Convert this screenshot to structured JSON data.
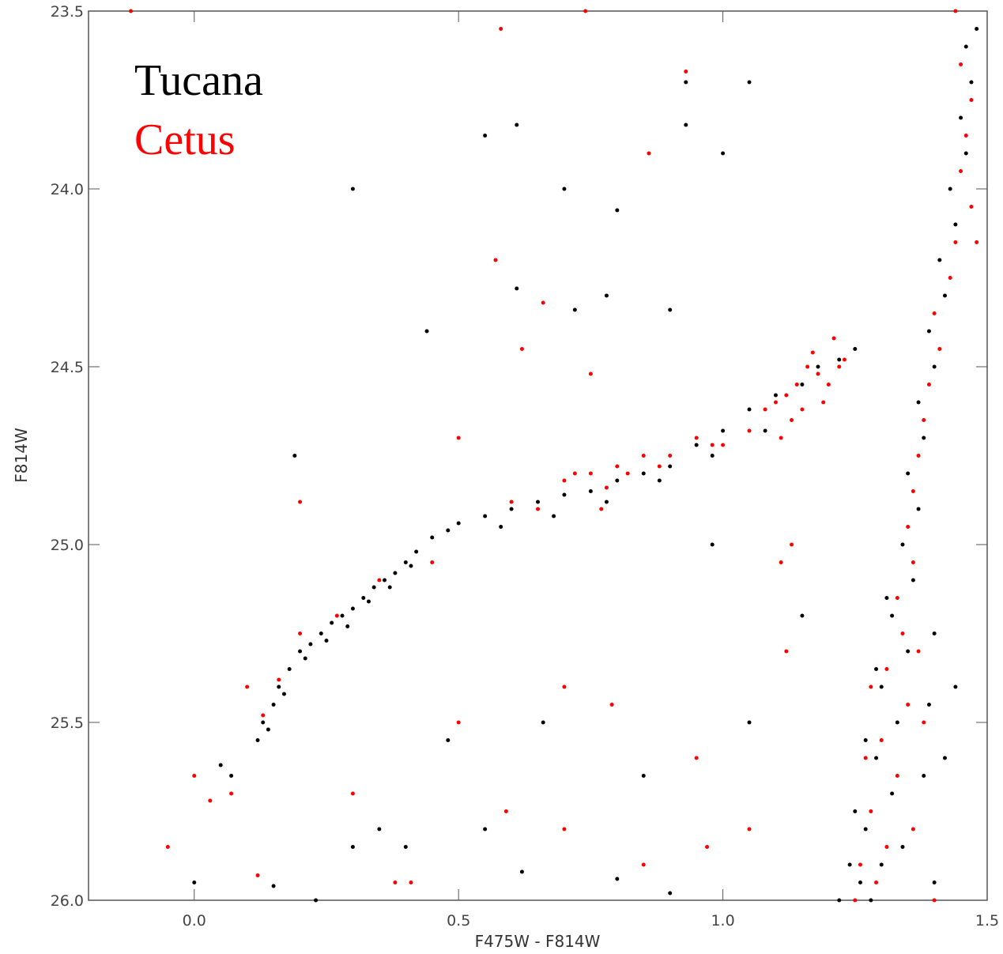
{
  "chart_data": {
    "type": "scatter",
    "x_label": "F475W - F814W",
    "y_label": "F814W",
    "xlim": [
      -0.2,
      1.5
    ],
    "ylim": [
      26.0,
      23.5
    ],
    "xticks": [
      {
        "value": 0,
        "label": "0.0"
      },
      0.5,
      {
        "value": 1,
        "label": "1.0"
      },
      1.5
    ],
    "yticks": [
      23.5,
      {
        "value": 24,
        "label": "24.0"
      },
      24.5,
      {
        "value": 25,
        "label": "25.0"
      },
      25.5,
      {
        "value": 26,
        "label": "26.0"
      }
    ],
    "series": [
      {
        "name": "Tucana",
        "color": "#000000",
        "x": [
          0.12,
          0.13,
          0.15,
          0.16,
          0.18,
          0.2,
          0.22,
          0.24,
          0.26,
          0.28,
          0.3,
          0.32,
          0.34,
          0.36,
          0.38,
          0.4,
          0.42,
          0.45,
          0.48,
          0.5,
          0.55,
          0.6,
          0.65,
          0.7,
          0.75,
          0.8,
          0.85,
          0.9,
          0.95,
          1.0,
          1.05,
          1.1,
          1.15,
          1.18,
          1.22,
          1.25,
          0.14,
          0.17,
          0.21,
          0.25,
          0.29,
          0.33,
          0.37,
          0.41,
          0.07,
          0.05,
          0.58,
          0.68,
          0.78,
          0.88,
          0.98,
          1.08,
          1.28,
          1.3,
          1.27,
          1.32,
          1.29,
          1.33,
          1.3,
          1.35,
          1.32,
          1.36,
          1.34,
          1.37,
          1.35,
          1.38,
          1.37,
          1.4,
          1.39,
          1.42,
          1.41,
          1.44,
          1.43,
          1.46,
          1.45,
          1.47,
          1.46,
          1.48,
          1.26,
          1.34,
          1.25,
          1.38,
          1.27,
          1.39,
          1.29,
          1.4,
          1.31,
          1.22,
          1.24,
          1.4,
          1.42,
          1.44,
          0.3,
          0.55,
          0.61,
          0.7,
          0.8,
          0.44,
          0.61,
          0.72,
          0.78,
          0.9,
          0.93,
          0.93,
          1.0,
          1.05,
          0.19,
          0.0,
          0.15,
          0.4,
          0.62,
          0.55,
          0.8,
          0.9,
          0.35,
          0.48,
          0.66,
          0.85,
          1.05,
          0.98,
          1.15,
          0.3,
          0.23
        ],
        "y": [
          25.55,
          25.5,
          25.45,
          25.4,
          25.35,
          25.3,
          25.28,
          25.25,
          25.22,
          25.2,
          25.18,
          25.15,
          25.12,
          25.1,
          25.08,
          25.05,
          25.02,
          24.98,
          24.96,
          24.94,
          24.92,
          24.9,
          24.88,
          24.86,
          24.85,
          24.82,
          24.8,
          24.78,
          24.72,
          24.68,
          24.62,
          24.58,
          24.55,
          24.5,
          24.48,
          24.45,
          25.52,
          25.42,
          25.32,
          25.27,
          25.23,
          25.16,
          25.12,
          25.06,
          25.65,
          25.62,
          24.95,
          24.92,
          24.88,
          24.82,
          24.75,
          24.68,
          26.0,
          25.9,
          25.8,
          25.7,
          25.6,
          25.5,
          25.4,
          25.3,
          25.2,
          25.1,
          25.0,
          24.9,
          24.8,
          24.7,
          24.6,
          24.5,
          24.4,
          24.3,
          24.2,
          24.1,
          24.0,
          23.9,
          23.8,
          23.7,
          23.6,
          23.55,
          25.95,
          25.85,
          25.75,
          25.65,
          25.55,
          25.45,
          25.35,
          25.25,
          25.15,
          26.0,
          25.9,
          25.95,
          25.6,
          25.4,
          24.0,
          23.85,
          23.82,
          24.0,
          24.06,
          24.4,
          24.28,
          24.34,
          24.3,
          24.34,
          23.82,
          23.7,
          23.9,
          23.7,
          24.75,
          25.95,
          25.96,
          25.85,
          25.92,
          25.8,
          25.94,
          25.98,
          25.8,
          25.55,
          25.5,
          25.65,
          25.5,
          25.0,
          25.2,
          25.85,
          26.0
        ]
      },
      {
        "name": "Cetus",
        "color": "#ff0000",
        "x": [
          0.1,
          0.13,
          0.16,
          0.2,
          0.27,
          0.35,
          0.45,
          0.6,
          0.65,
          0.7,
          0.72,
          0.75,
          0.78,
          0.8,
          0.82,
          0.85,
          0.9,
          0.95,
          1.0,
          1.05,
          1.08,
          1.1,
          1.12,
          1.14,
          1.16,
          1.18,
          1.2,
          1.22,
          1.17,
          1.19,
          1.21,
          1.15,
          1.13,
          1.23,
          1.11,
          0.77,
          0.88,
          0.98,
          -0.05,
          0.0,
          0.03,
          0.07,
          1.29,
          1.31,
          1.28,
          1.33,
          1.3,
          1.35,
          1.31,
          1.34,
          1.33,
          1.36,
          1.35,
          1.36,
          1.37,
          1.38,
          1.39,
          1.41,
          1.4,
          1.43,
          1.44,
          1.48,
          1.47,
          1.45,
          1.46,
          1.47,
          1.45,
          1.44,
          1.26,
          1.36,
          1.27,
          1.38,
          1.28,
          1.37,
          1.25,
          1.4,
          0.2,
          0.5,
          0.57,
          0.62,
          0.66,
          0.75,
          0.86,
          0.93,
          0.58,
          0.74,
          -0.12,
          0.7,
          0.79,
          0.59,
          0.38,
          0.3,
          0.5,
          0.7,
          0.85,
          0.95,
          1.05,
          1.11,
          1.13,
          1.12,
          0.97,
          0.41,
          0.12
        ],
        "y": [
          25.4,
          25.48,
          25.38,
          25.25,
          25.2,
          25.1,
          25.05,
          24.88,
          24.9,
          24.82,
          24.8,
          24.8,
          24.84,
          24.78,
          24.8,
          24.75,
          24.75,
          24.7,
          24.72,
          24.68,
          24.62,
          24.6,
          24.58,
          24.55,
          24.5,
          24.52,
          24.55,
          24.5,
          24.46,
          24.6,
          24.42,
          24.62,
          24.65,
          24.48,
          24.7,
          24.9,
          24.78,
          24.72,
          25.85,
          25.65,
          25.72,
          25.7,
          25.95,
          25.85,
          25.75,
          25.65,
          25.55,
          25.45,
          25.35,
          25.25,
          25.15,
          25.05,
          24.95,
          24.85,
          24.75,
          24.65,
          24.55,
          24.45,
          24.35,
          24.25,
          24.15,
          24.15,
          24.05,
          23.95,
          23.85,
          23.75,
          23.65,
          23.5,
          25.9,
          25.8,
          25.6,
          25.5,
          25.4,
          25.3,
          26.0,
          26.0,
          24.88,
          24.7,
          24.2,
          24.45,
          24.32,
          24.52,
          23.9,
          23.67,
          23.55,
          23.5,
          23.5,
          25.4,
          25.45,
          25.75,
          25.95,
          25.7,
          25.5,
          25.8,
          25.9,
          25.6,
          25.8,
          25.05,
          25.0,
          25.3,
          25.85,
          25.95,
          25.93
        ]
      }
    ]
  }
}
